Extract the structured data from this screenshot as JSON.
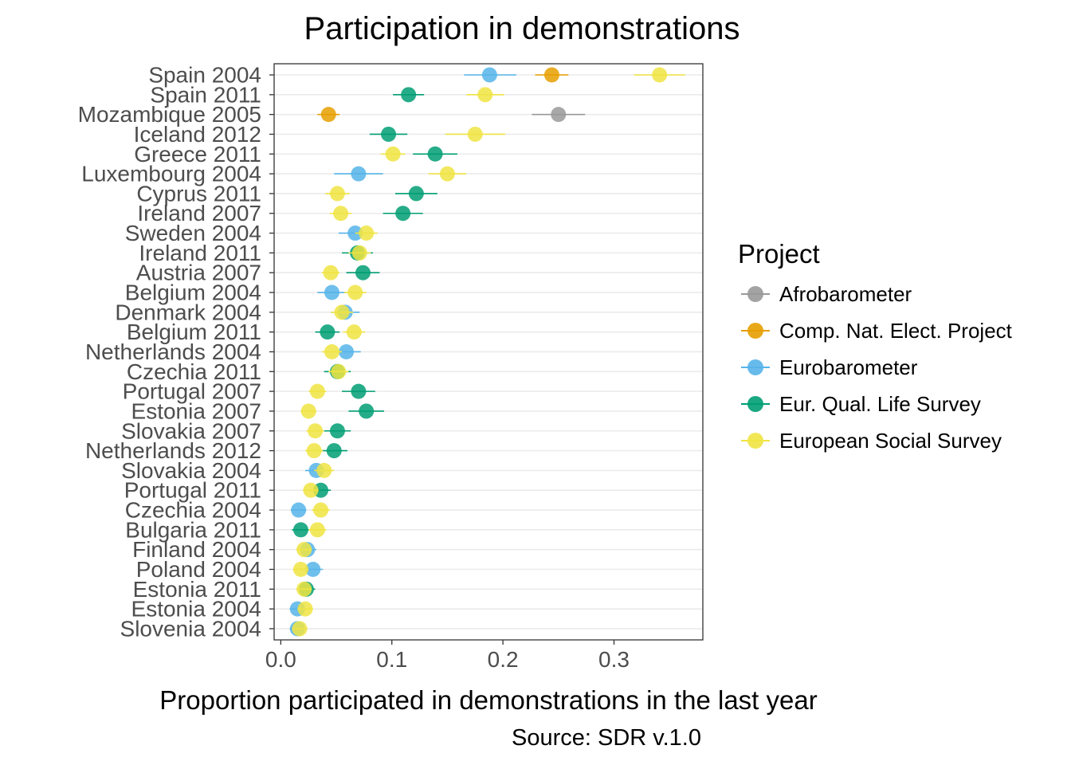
{
  "chart_data": {
    "type": "scatter",
    "title": "Participation in demonstrations",
    "xlabel": "Proportion participated in demonstrations in the last year",
    "ylabel": "",
    "caption": "Source: SDR v.1.0",
    "xlim": [
      -0.006,
      0.38
    ],
    "x_ticks": [
      0.0,
      0.1,
      0.2,
      0.3
    ],
    "x_tick_labels": [
      "0.0",
      "0.1",
      "0.2",
      "0.3"
    ],
    "grid": "horizontal major only",
    "legend_position": "right",
    "legend_title": "Project",
    "categories": [
      "Spain 2004",
      "Spain 2011",
      "Mozambique 2005",
      "Iceland 2012",
      "Greece 2011",
      "Luxembourg 2004",
      "Cyprus 2011",
      "Ireland 2007",
      "Sweden 2004",
      "Ireland 2011",
      "Austria 2007",
      "Belgium 2004",
      "Denmark 2004",
      "Belgium 2011",
      "Netherlands 2004",
      "Czechia 2011",
      "Portugal 2007",
      "Estonia 2007",
      "Slovakia 2007",
      "Netherlands 2012",
      "Slovakia 2004",
      "Portugal 2011",
      "Czechia 2004",
      "Bulgaria 2011",
      "Finland 2004",
      "Poland 2004",
      "Estonia 2011",
      "Estonia 2004",
      "Slovenia 2004"
    ],
    "series": [
      {
        "name": "Afrobarometer",
        "color": "#999999",
        "points": [
          {
            "y": "Mozambique 2005",
            "x": 0.25,
            "lo": 0.226,
            "hi": 0.274
          }
        ]
      },
      {
        "name": "Comp. Nat. Elect. Project",
        "color": "#E69F00",
        "points": [
          {
            "y": "Spain 2004",
            "x": 0.244,
            "lo": 0.229,
            "hi": 0.259
          },
          {
            "y": "Mozambique 2005",
            "x": 0.043,
            "lo": 0.033,
            "hi": 0.053
          }
        ]
      },
      {
        "name": "Eurobarometer",
        "color": "#56B4E9",
        "points": [
          {
            "y": "Spain 2004",
            "x": 0.188,
            "lo": 0.165,
            "hi": 0.212
          },
          {
            "y": "Luxembourg 2004",
            "x": 0.07,
            "lo": 0.048,
            "hi": 0.092
          },
          {
            "y": "Sweden 2004",
            "x": 0.067,
            "lo": 0.052,
            "hi": 0.082
          },
          {
            "y": "Belgium 2004",
            "x": 0.046,
            "lo": 0.033,
            "hi": 0.059
          },
          {
            "y": "Denmark 2004",
            "x": 0.058,
            "lo": 0.045,
            "hi": 0.071
          },
          {
            "y": "Netherlands 2004",
            "x": 0.059,
            "lo": 0.046,
            "hi": 0.072
          },
          {
            "y": "Slovakia 2004",
            "x": 0.032,
            "lo": 0.022,
            "hi": 0.042
          },
          {
            "y": "Czechia 2004",
            "x": 0.016,
            "lo": 0.009,
            "hi": 0.023
          },
          {
            "y": "Finland 2004",
            "x": 0.024,
            "lo": 0.016,
            "hi": 0.032
          },
          {
            "y": "Poland 2004",
            "x": 0.029,
            "lo": 0.02,
            "hi": 0.038
          },
          {
            "y": "Estonia 2004",
            "x": 0.015,
            "lo": 0.008,
            "hi": 0.022
          },
          {
            "y": "Slovenia 2004",
            "x": 0.015,
            "lo": 0.008,
            "hi": 0.022
          }
        ]
      },
      {
        "name": "Eur. Qual. Life Survey",
        "color": "#009E73",
        "points": [
          {
            "y": "Spain 2011",
            "x": 0.115,
            "lo": 0.101,
            "hi": 0.129
          },
          {
            "y": "Iceland 2012",
            "x": 0.097,
            "lo": 0.08,
            "hi": 0.114
          },
          {
            "y": "Greece 2011",
            "x": 0.139,
            "lo": 0.119,
            "hi": 0.159
          },
          {
            "y": "Cyprus 2011",
            "x": 0.122,
            "lo": 0.103,
            "hi": 0.141
          },
          {
            "y": "Ireland 2007",
            "x": 0.11,
            "lo": 0.092,
            "hi": 0.128
          },
          {
            "y": "Ireland 2011",
            "x": 0.069,
            "lo": 0.055,
            "hi": 0.083
          },
          {
            "y": "Austria 2007",
            "x": 0.074,
            "lo": 0.059,
            "hi": 0.089
          },
          {
            "y": "Belgium 2011",
            "x": 0.042,
            "lo": 0.031,
            "hi": 0.053
          },
          {
            "y": "Czechia 2011",
            "x": 0.051,
            "lo": 0.039,
            "hi": 0.063
          },
          {
            "y": "Portugal 2007",
            "x": 0.07,
            "lo": 0.055,
            "hi": 0.085
          },
          {
            "y": "Estonia 2007",
            "x": 0.077,
            "lo": 0.061,
            "hi": 0.093
          },
          {
            "y": "Slovakia 2007",
            "x": 0.051,
            "lo": 0.039,
            "hi": 0.063
          },
          {
            "y": "Netherlands 2012",
            "x": 0.048,
            "lo": 0.036,
            "hi": 0.06
          },
          {
            "y": "Portugal 2011",
            "x": 0.036,
            "lo": 0.027,
            "hi": 0.045
          },
          {
            "y": "Bulgaria 2011",
            "x": 0.018,
            "lo": 0.01,
            "hi": 0.026
          },
          {
            "y": "Estonia 2011",
            "x": 0.023,
            "lo": 0.015,
            "hi": 0.031
          }
        ]
      },
      {
        "name": "European Social Survey",
        "color": "#F0E442",
        "points": [
          {
            "y": "Spain 2004",
            "x": 0.341,
            "lo": 0.318,
            "hi": 0.364
          },
          {
            "y": "Spain 2011",
            "x": 0.184,
            "lo": 0.167,
            "hi": 0.201
          },
          {
            "y": "Iceland 2012",
            "x": 0.175,
            "lo": 0.148,
            "hi": 0.202
          },
          {
            "y": "Greece 2011",
            "x": 0.101,
            "lo": 0.09,
            "hi": 0.112
          },
          {
            "y": "Luxembourg 2004",
            "x": 0.15,
            "lo": 0.133,
            "hi": 0.167
          },
          {
            "y": "Cyprus 2011",
            "x": 0.051,
            "lo": 0.04,
            "hi": 0.062
          },
          {
            "y": "Ireland 2007",
            "x": 0.054,
            "lo": 0.044,
            "hi": 0.064
          },
          {
            "y": "Sweden 2004",
            "x": 0.077,
            "lo": 0.067,
            "hi": 0.087
          },
          {
            "y": "Ireland 2011",
            "x": 0.071,
            "lo": 0.061,
            "hi": 0.081
          },
          {
            "y": "Austria 2007",
            "x": 0.045,
            "lo": 0.037,
            "hi": 0.053
          },
          {
            "y": "Belgium 2004",
            "x": 0.067,
            "lo": 0.057,
            "hi": 0.077
          },
          {
            "y": "Denmark 2004",
            "x": 0.055,
            "lo": 0.045,
            "hi": 0.065
          },
          {
            "y": "Belgium 2011",
            "x": 0.066,
            "lo": 0.056,
            "hi": 0.076
          },
          {
            "y": "Netherlands 2004",
            "x": 0.046,
            "lo": 0.037,
            "hi": 0.055
          },
          {
            "y": "Czechia 2011",
            "x": 0.052,
            "lo": 0.043,
            "hi": 0.061
          },
          {
            "y": "Portugal 2007",
            "x": 0.033,
            "lo": 0.025,
            "hi": 0.041
          },
          {
            "y": "Estonia 2007",
            "x": 0.025,
            "lo": 0.018,
            "hi": 0.032
          },
          {
            "y": "Slovakia 2007",
            "x": 0.031,
            "lo": 0.023,
            "hi": 0.039
          },
          {
            "y": "Netherlands 2012",
            "x": 0.03,
            "lo": 0.022,
            "hi": 0.038
          },
          {
            "y": "Slovakia 2004",
            "x": 0.039,
            "lo": 0.03,
            "hi": 0.048
          },
          {
            "y": "Portugal 2011",
            "x": 0.027,
            "lo": 0.02,
            "hi": 0.034
          },
          {
            "y": "Czechia 2004",
            "x": 0.036,
            "lo": 0.028,
            "hi": 0.044
          },
          {
            "y": "Bulgaria 2011",
            "x": 0.033,
            "lo": 0.025,
            "hi": 0.041
          },
          {
            "y": "Finland 2004",
            "x": 0.021,
            "lo": 0.014,
            "hi": 0.028
          },
          {
            "y": "Poland 2004",
            "x": 0.018,
            "lo": 0.011,
            "hi": 0.025
          },
          {
            "y": "Estonia 2011",
            "x": 0.021,
            "lo": 0.014,
            "hi": 0.028
          },
          {
            "y": "Estonia 2004",
            "x": 0.022,
            "lo": 0.015,
            "hi": 0.029
          },
          {
            "y": "Slovenia 2004",
            "x": 0.017,
            "lo": 0.01,
            "hi": 0.024
          }
        ]
      }
    ]
  }
}
